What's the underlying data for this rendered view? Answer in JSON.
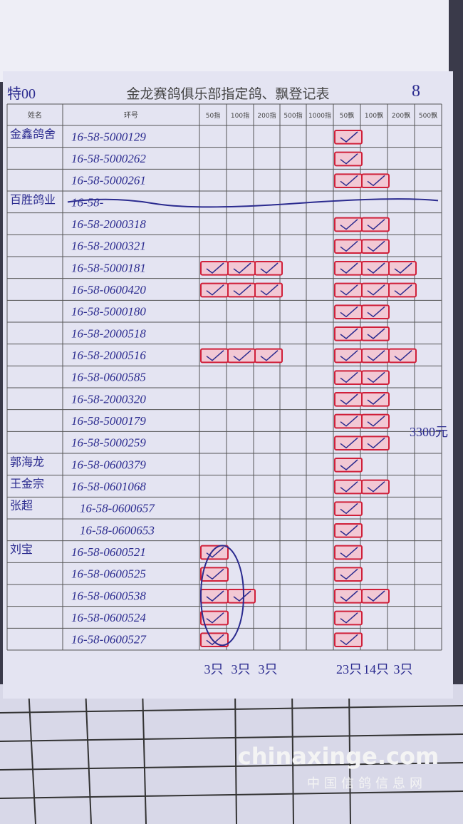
{
  "header": {
    "code": "特00",
    "title": "金龙赛鸽俱乐部指定鸽、飘登记表",
    "page": "8"
  },
  "table": {
    "columns": [
      "姓名",
      "环号",
      "50指",
      "100指",
      "200指",
      "500指",
      "1000指",
      "50飘",
      "100飘",
      "200飘",
      "500飘"
    ],
    "rows": [
      [
        "金鑫鸽舍",
        "16-58-5000129"
      ],
      [
        "",
        "16-58-5000262"
      ],
      [
        "",
        "16-58-5000261"
      ],
      [
        "百胜鸽业",
        "16-58-"
      ],
      [
        "",
        "16-58-2000318"
      ],
      [
        "",
        "16-58-2000321"
      ],
      [
        "",
        "16-58-5000181"
      ],
      [
        "",
        "16-58-0600420"
      ],
      [
        "",
        "16-58-5000180"
      ],
      [
        "",
        "16-58-2000518"
      ],
      [
        "",
        "16-58-2000516"
      ],
      [
        "",
        "16-58-0600585"
      ],
      [
        "",
        "16-58-2000320"
      ],
      [
        "",
        "16-58-5000179"
      ],
      [
        "",
        "16-58-5000259"
      ],
      [
        "郭海龙",
        "16-58-0600379"
      ],
      [
        "王金宗",
        "16-58-0601068"
      ],
      [
        "张超",
        "16-58-0600657"
      ],
      [
        "",
        "16-58-0600653"
      ],
      [
        "刘宝",
        "16-58-0600521"
      ],
      [
        "",
        "16-58-0600525"
      ],
      [
        "",
        "16-58-0600538"
      ],
      [
        "",
        "16-58-0600524"
      ],
      [
        "",
        "16-58-0600527"
      ]
    ]
  },
  "totals": [
    "3只",
    "3只",
    "3只",
    "23只",
    "14只",
    "3只"
  ],
  "note": "3300元",
  "watermark": {
    "site": "chinaxinge.com",
    "name": "中国信鸽信息网"
  }
}
